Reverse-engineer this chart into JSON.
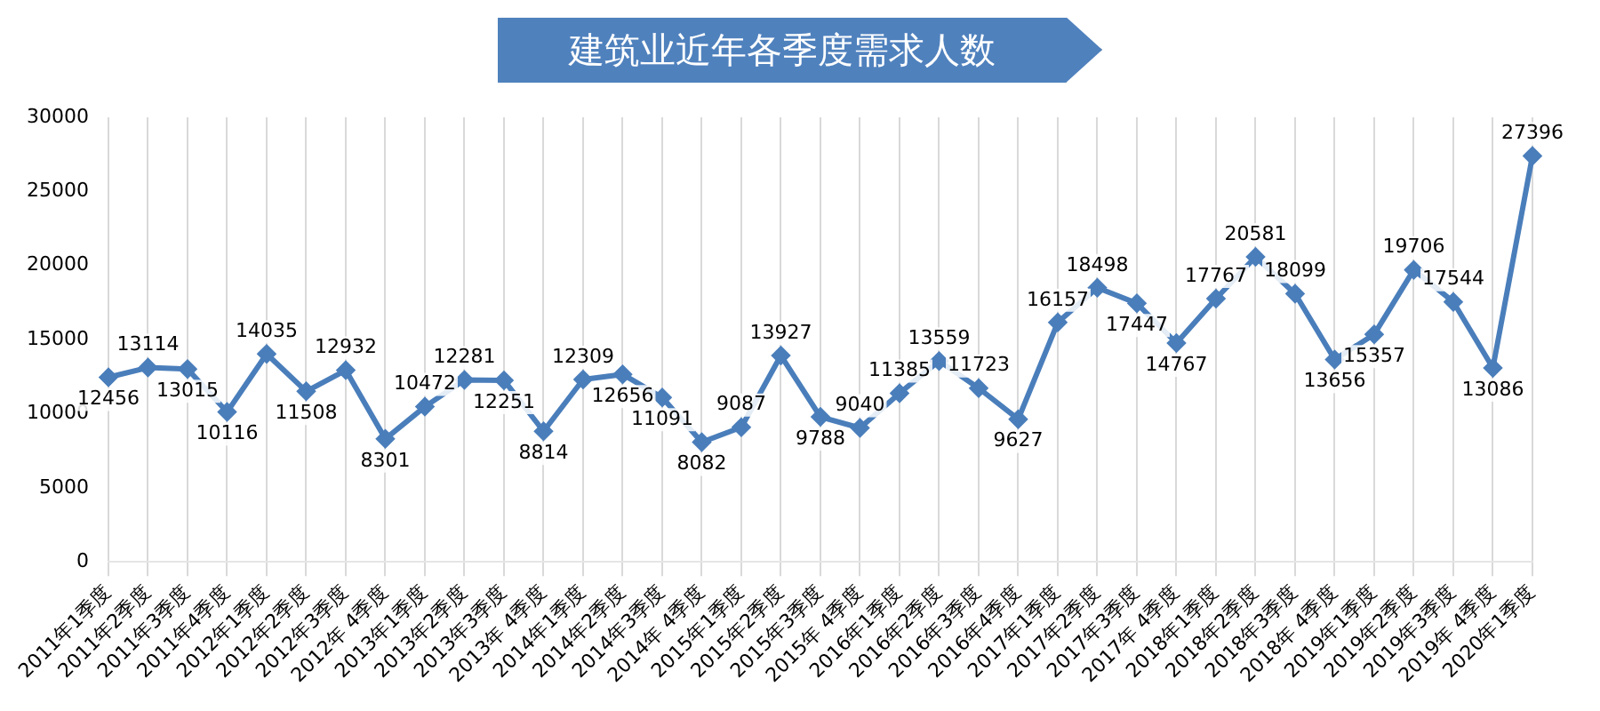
{
  "chart_data": {
    "type": "line",
    "title": "建筑业近年各季度需求人数",
    "categories": [
      "2011年1季度",
      "2011年2季度",
      "2011年3季度",
      "2011年4季度",
      "2012年1季度",
      "2012年2季度",
      "2012年3季度",
      "2012年 4季度",
      "2013年1季度",
      "2013年2季度",
      "2013年3季度",
      "2013年 4季度",
      "2014年1季度",
      "2014年2季度",
      "2014年3季度",
      "2014年 4季度",
      "2015年1季度",
      "2015年2季度",
      "2015年3季度",
      "2015年 4季度",
      "2016年1季度",
      "2016年2季度",
      "2016年3季度",
      "2016年4季度",
      "2017年1季度",
      "2017年2季度",
      "2017年3季度",
      "2017年 4季度",
      "2018年1季度",
      "2018年2季度",
      "2018年3季度",
      "2018年 4季度",
      "2019年1季度",
      "2019年2季度",
      "2019年3季度",
      "2019年 4季度",
      "2020年1季度"
    ],
    "series": [
      {
        "color": "#4a7ebb",
        "values": [
          12456,
          13114,
          13015,
          10116,
          14035,
          11508,
          12932,
          8301,
          10472,
          12281,
          12251,
          8814,
          12309,
          12656,
          11091,
          8082,
          9087,
          13927,
          9788,
          9040,
          11385,
          13559,
          11723,
          9627,
          16157,
          18498,
          17447,
          14767,
          17767,
          20581,
          18099,
          13656,
          15357,
          19706,
          17544,
          13086,
          27396
        ]
      }
    ],
    "ylim": [
      0,
      30000
    ],
    "yticks": [
      0,
      5000,
      10000,
      15000,
      20000,
      25000,
      30000
    ],
    "grid": "x",
    "marker": "diamond",
    "line_style": "solid",
    "data_labels": true,
    "legend": false
  }
}
